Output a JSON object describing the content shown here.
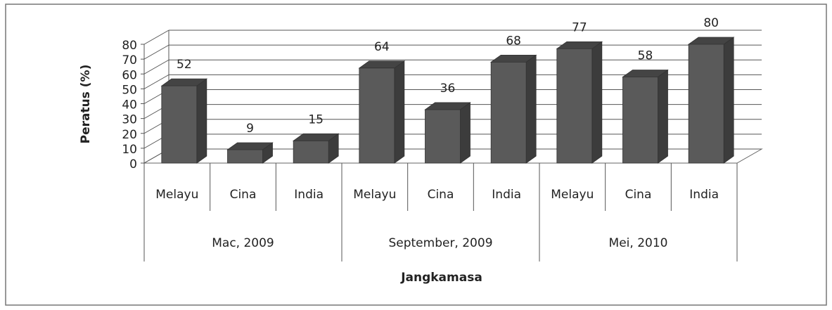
{
  "chart_data": {
    "type": "bar",
    "categories": [
      "Melayu",
      "Cina",
      "India",
      "Melayu",
      "Cina",
      "India",
      "Melayu",
      "Cina",
      "India"
    ],
    "groups": [
      "Mac, 2009",
      "September, 2009",
      "Mei, 2010"
    ],
    "values": [
      52,
      9,
      15,
      64,
      36,
      68,
      77,
      58,
      80
    ],
    "color": "#5a5a5a",
    "ylim": [
      0,
      80
    ],
    "yticks": [
      0,
      10,
      20,
      30,
      40,
      50,
      60,
      70,
      80
    ],
    "xlabel": "Jangkamasa",
    "ylabel": "Peratus (%)",
    "grid": true
  }
}
